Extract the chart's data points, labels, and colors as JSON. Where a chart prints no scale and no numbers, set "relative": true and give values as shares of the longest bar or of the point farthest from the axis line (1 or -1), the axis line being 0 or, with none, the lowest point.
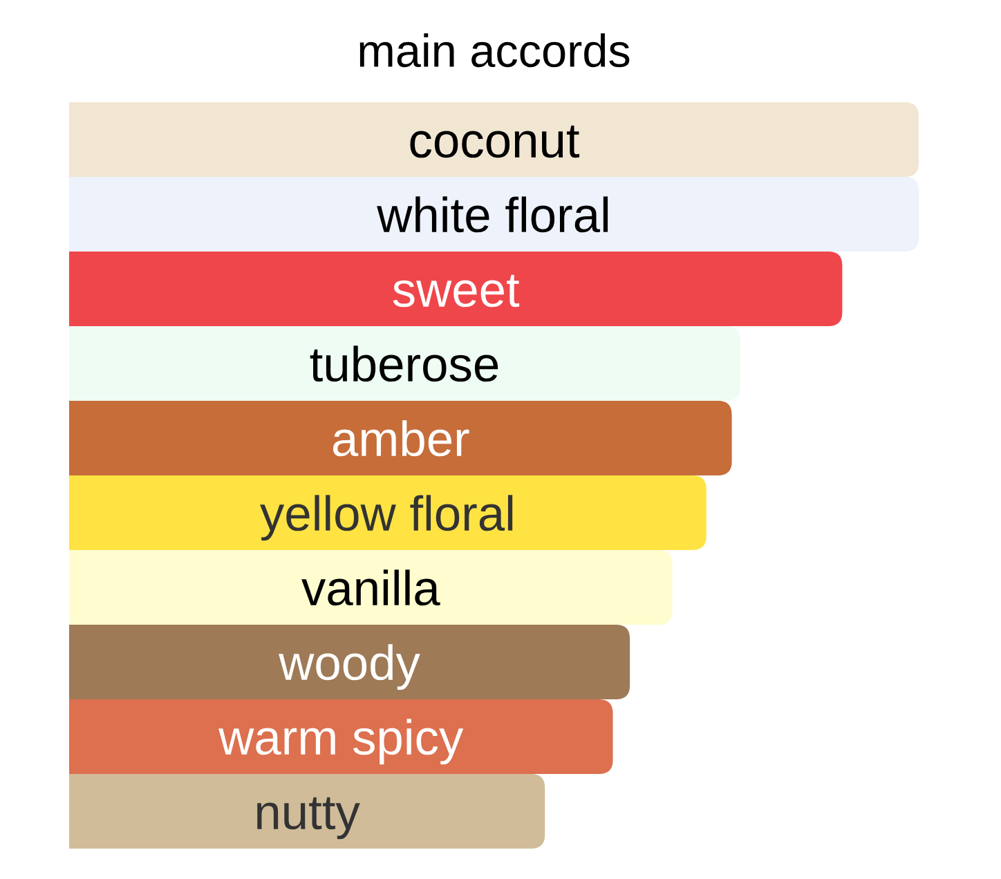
{
  "chart_data": {
    "type": "bar",
    "orientation": "horizontal",
    "relative": true,
    "title": "main accords",
    "categories": [
      "coconut",
      "white floral",
      "sweet",
      "tuberose",
      "amber",
      "yellow floral",
      "vanilla",
      "woody",
      "warm spicy",
      "nutty"
    ],
    "values": [
      1,
      1,
      0.91,
      0.79,
      0.78,
      0.75,
      0.71,
      0.66,
      0.64,
      0.56
    ],
    "colors": [
      "#f0e6d2",
      "#edf2fb",
      "#ef464b",
      "#eefcf4",
      "#c66d3a",
      "#ffe343",
      "#fffdd0",
      "#9e7a57",
      "#dc704f",
      "#d0bc99"
    ]
  }
}
